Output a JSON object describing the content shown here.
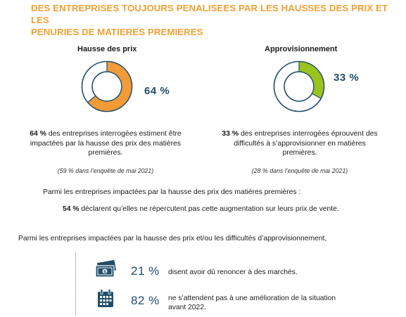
{
  "title": {
    "line1": "DES ENTREPRISES TOUJOURS PENALISEES PAR LES HAUSSES DES PRIX ET LES",
    "line2": "PENURIES DE MATIERES PREMIERES"
  },
  "colors": {
    "orange": "#f29b38",
    "green": "#9ac31e",
    "navy": "#1f4e6b",
    "ring": "#1f4e6b"
  },
  "left": {
    "heading": "Hausse des prix",
    "percent_label": "64 %",
    "value": 0.64,
    "desc_bold": "64 %",
    "desc_line1": " des entreprises interrogées estiment être",
    "desc_line2": "impactées par la hausse des prix des matières",
    "desc_line3": "premières.",
    "note": "(59 % dans l’enquête de mai 2021)"
  },
  "right": {
    "heading": "Approvisionnement",
    "percent_label": "33 %",
    "value": 0.33,
    "desc_bold": "33 %",
    "desc_line1": " des entreprises interrogées éprouvent des",
    "desc_line2": "difficultés à s’approvisionner en matières",
    "desc_line3": "premières.",
    "note": "(28 % dans l’enquête de mai 2021)"
  },
  "impact": {
    "intro": "Parmi les entreprises impactées par la hausse des prix des matières premières :",
    "bold": "54 %",
    "text": " déclarent qu’elles ne répercutent pas cette augmentation sur leurs prix de vente."
  },
  "both": {
    "intro": "Parmi les entreprises impactées par la hausse des prix et/ou les difficultés d’approvisionnement,",
    "stats": [
      {
        "icon": "money-icon",
        "value": "21 %",
        "text1": "disent avoir dû renoncer à des marchés.",
        "text2": ""
      },
      {
        "icon": "calendar-icon",
        "value": "82 %",
        "text1": "ne s’attendent pas à une amélioration de la situation",
        "text2": "avant 2022."
      }
    ]
  }
}
